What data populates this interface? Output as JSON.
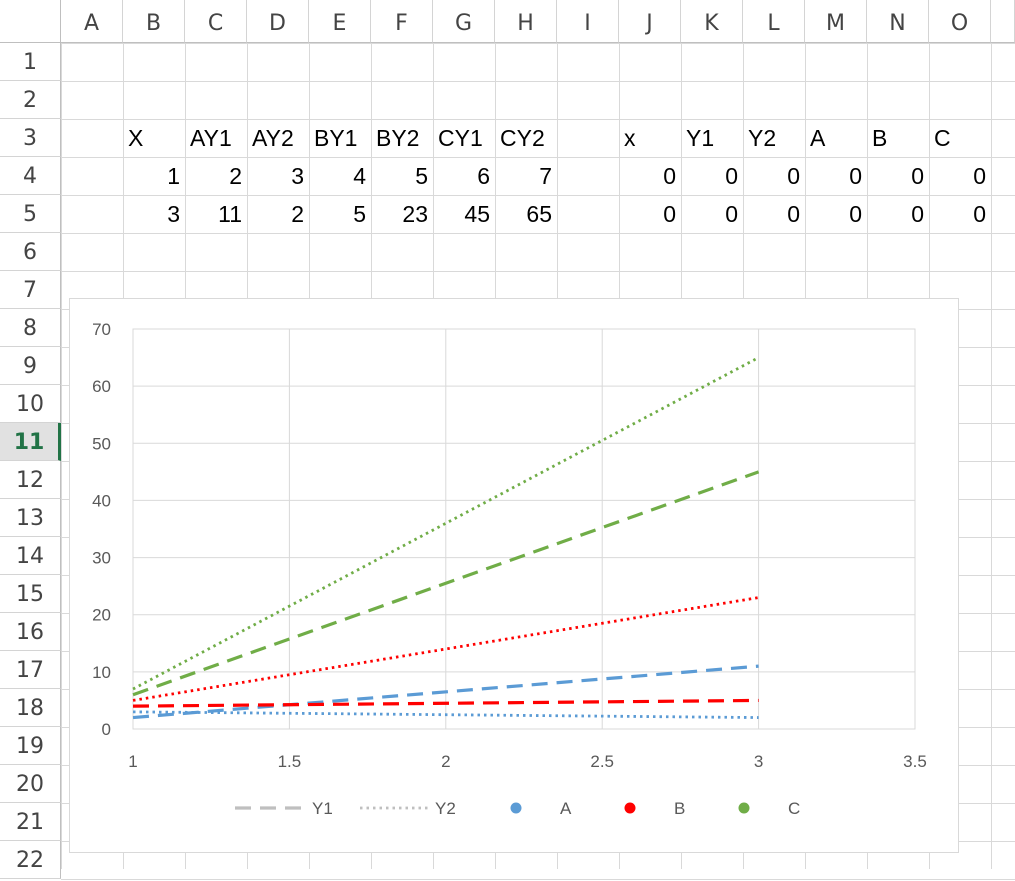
{
  "columns": [
    "A",
    "B",
    "C",
    "D",
    "E",
    "F",
    "G",
    "H",
    "I",
    "J",
    "K",
    "L",
    "M",
    "N",
    "O"
  ],
  "rows": [
    "1",
    "2",
    "3",
    "4",
    "5",
    "6",
    "7",
    "8",
    "9",
    "10",
    "11",
    "12",
    "13",
    "14",
    "15",
    "16",
    "17",
    "18",
    "19",
    "20",
    "21",
    "22"
  ],
  "active_row": "11",
  "cells": {
    "B3": "X",
    "C3": "AY1",
    "D3": "AY2",
    "E3": "BY1",
    "F3": "BY2",
    "G3": "CY1",
    "H3": "CY2",
    "J3": "x",
    "K3": "Y1",
    "L3": "Y2",
    "M3": "A",
    "N3": "B",
    "O3": "C",
    "B4": "1",
    "C4": "2",
    "D4": "3",
    "E4": "4",
    "F4": "5",
    "G4": "6",
    "H4": "7",
    "J4": "0",
    "K4": "0",
    "L4": "0",
    "M4": "0",
    "N4": "0",
    "O4": "0",
    "B5": "3",
    "C5": "11",
    "D5": "2",
    "E5": "5",
    "F5": "23",
    "G5": "45",
    "H5": "65",
    "J5": "0",
    "K5": "0",
    "L5": "0",
    "M5": "0",
    "N5": "0",
    "O5": "0"
  },
  "chart_data": {
    "type": "line",
    "x_ticks": [
      "1",
      "1.5",
      "2",
      "2.5",
      "3",
      "3.5"
    ],
    "y_ticks": [
      "0",
      "10",
      "20",
      "30",
      "40",
      "50",
      "60",
      "70"
    ],
    "xlim": [
      1,
      3.5
    ],
    "ylim": [
      0,
      70
    ],
    "grid": true,
    "legend_position": "bottom",
    "series": [
      {
        "style": "dashed",
        "color": "#5b9bd5",
        "x": [
          1,
          3
        ],
        "y": [
          2,
          11
        ]
      },
      {
        "style": "dotted",
        "color": "#5b9bd5",
        "x": [
          1,
          3
        ],
        "y": [
          3,
          2
        ]
      },
      {
        "style": "dashed",
        "color": "#ff0000",
        "x": [
          1,
          3
        ],
        "y": [
          4,
          5
        ]
      },
      {
        "style": "dotted",
        "color": "#ff0000",
        "x": [
          1,
          3
        ],
        "y": [
          5,
          23
        ]
      },
      {
        "style": "dashed",
        "color": "#70ad47",
        "x": [
          1,
          3
        ],
        "y": [
          6,
          45
        ]
      },
      {
        "style": "dotted",
        "color": "#70ad47",
        "x": [
          1,
          3
        ],
        "y": [
          7,
          65
        ]
      }
    ],
    "legend": [
      {
        "label": "Y1",
        "marker": "dashed-line",
        "color": "#bfbfbf"
      },
      {
        "label": "Y2",
        "marker": "dotted-line",
        "color": "#bfbfbf"
      },
      {
        "label": "A",
        "marker": "dot",
        "color": "#5b9bd5"
      },
      {
        "label": "B",
        "marker": "dot",
        "color": "#ff0000"
      },
      {
        "label": "C",
        "marker": "dot",
        "color": "#70ad47"
      }
    ]
  }
}
